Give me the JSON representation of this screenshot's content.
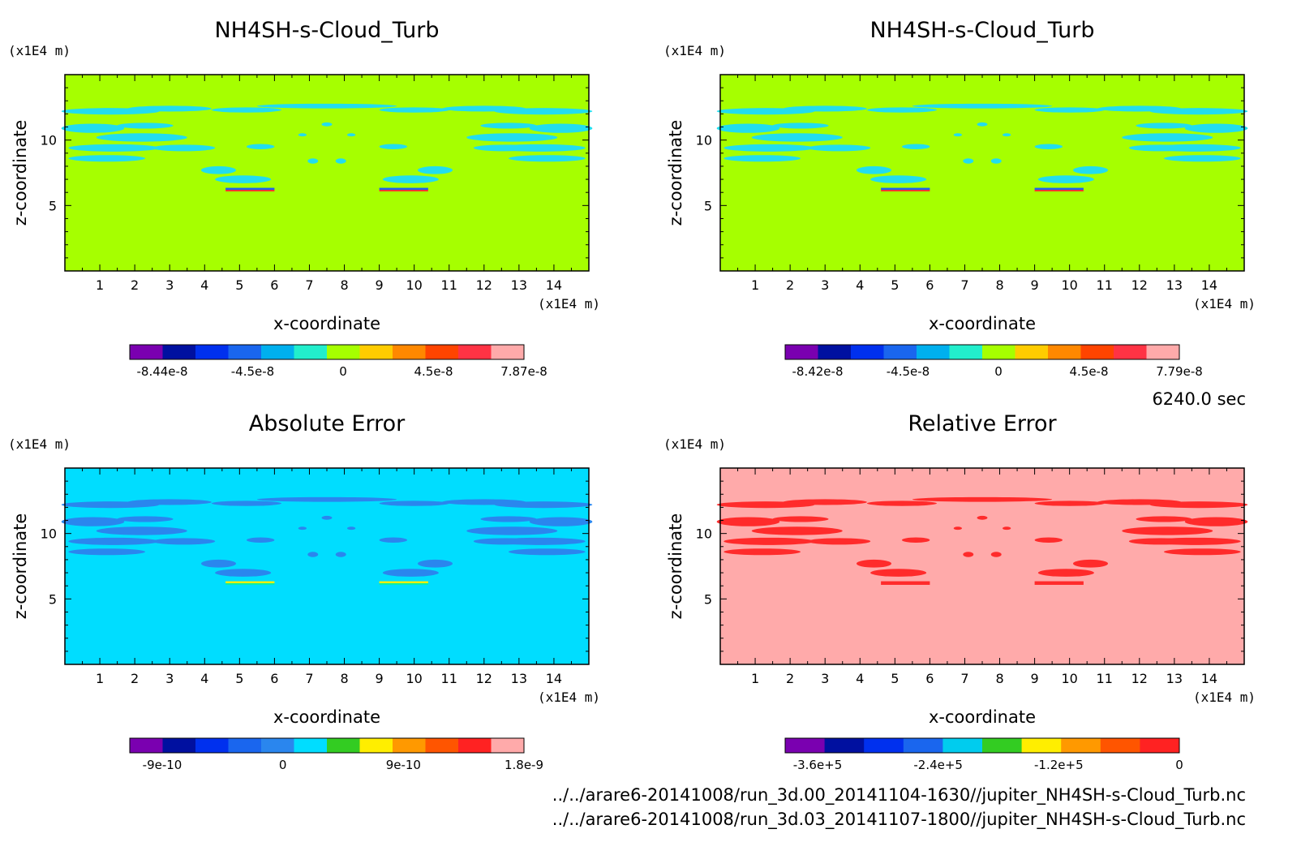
{
  "time_label": "6240.0 sec",
  "footer": {
    "file_1": "../../arare6-20141008/run_3d.00_20141104-1630//jupiter_NH4SH-s-Cloud_Turb.nc",
    "file_2": "../../arare6-20141008/run_3d.03_20141107-1800//jupiter_NH4SH-s-Cloud_Turb.nc"
  },
  "chart_data": [
    {
      "type": "heatmap",
      "title": "NH4SH-s-Cloud_Turb",
      "xlabel": "x-coordinate",
      "ylabel": "z-coordinate",
      "x_unit": "(x1E4 m)",
      "y_unit": "(x1E4 m)",
      "xlim": [
        0,
        15
      ],
      "ylim": [
        0,
        15
      ],
      "xticks": [
        1,
        2,
        3,
        4,
        5,
        6,
        7,
        8,
        9,
        10,
        11,
        12,
        13,
        14
      ],
      "yticks": [
        5,
        10
      ],
      "background_color": "#a6ff00",
      "feature_color": "#22ddee",
      "layer_colors": [
        "#ff3333",
        "#1a66ee"
      ],
      "colorbar": {
        "colors": [
          "#7a00b0",
          "#0010a0",
          "#0030ee",
          "#1a66ee",
          "#00b0ee",
          "#22eecc",
          "#a6ff00",
          "#ffcc00",
          "#ff8800",
          "#ff4400",
          "#ff3344",
          "#ffaaaa"
        ],
        "labels": [
          "-8.44e-8",
          "-4.5e-8",
          "0",
          "4.5e-8",
          "7.87e-8"
        ],
        "min": -8.44e-08,
        "max": 7.87e-08
      }
    },
    {
      "type": "heatmap",
      "title": "NH4SH-s-Cloud_Turb",
      "xlabel": "x-coordinate",
      "ylabel": "z-coordinate",
      "x_unit": "(x1E4 m)",
      "y_unit": "(x1E4 m)",
      "xlim": [
        0,
        15
      ],
      "ylim": [
        0,
        15
      ],
      "xticks": [
        1,
        2,
        3,
        4,
        5,
        6,
        7,
        8,
        9,
        10,
        11,
        12,
        13,
        14
      ],
      "yticks": [
        5,
        10
      ],
      "background_color": "#a6ff00",
      "feature_color": "#22ddee",
      "layer_colors": [
        "#ff3333",
        "#1a66ee"
      ],
      "colorbar": {
        "colors": [
          "#7a00b0",
          "#0010a0",
          "#0030ee",
          "#1a66ee",
          "#00b0ee",
          "#22eecc",
          "#a6ff00",
          "#ffcc00",
          "#ff8800",
          "#ff4400",
          "#ff3344",
          "#ffaaaa"
        ],
        "labels": [
          "-8.42e-8",
          "-4.5e-8",
          "0",
          "4.5e-8",
          "7.79e-8"
        ],
        "min": -8.42e-08,
        "max": 7.79e-08
      }
    },
    {
      "type": "heatmap",
      "title": "Absolute Error",
      "xlabel": "x-coordinate",
      "ylabel": "z-coordinate",
      "x_unit": "(x1E4 m)",
      "y_unit": "(x1E4 m)",
      "xlim": [
        0,
        15
      ],
      "ylim": [
        0,
        15
      ],
      "xticks": [
        1,
        2,
        3,
        4,
        5,
        6,
        7,
        8,
        9,
        10,
        11,
        12,
        13,
        14
      ],
      "yticks": [
        5,
        10
      ],
      "background_color": "#00ddff",
      "feature_color": "#2a86ee",
      "layer_colors": [
        "#00eeaa",
        "#ffee00"
      ],
      "colorbar": {
        "colors": [
          "#7a00b0",
          "#0010a0",
          "#0030ee",
          "#1a66ee",
          "#2a86ee",
          "#00ddff",
          "#33cc22",
          "#ffee00",
          "#ff9900",
          "#ff5500",
          "#ff2222",
          "#ffaaaa"
        ],
        "labels": [
          "-9e-10",
          "0",
          "9e-10",
          "1.8e-9"
        ]
      }
    },
    {
      "type": "heatmap",
      "title": "Relative Error",
      "xlabel": "x-coordinate",
      "ylabel": "z-coordinate",
      "x_unit": "(x1E4 m)",
      "y_unit": "(x1E4 m)",
      "xlim": [
        0,
        15
      ],
      "ylim": [
        0,
        15
      ],
      "xticks": [
        1,
        2,
        3,
        4,
        5,
        6,
        7,
        8,
        9,
        10,
        11,
        12,
        13,
        14
      ],
      "yticks": [
        5,
        10
      ],
      "background_color": "#ffaaaa",
      "feature_color": "#ff2b2b",
      "layer_colors": [
        "#ff2b2b",
        "#ff2b2b"
      ],
      "colorbar": {
        "colors": [
          "#7a00b0",
          "#0010a0",
          "#0030ee",
          "#1a66ee",
          "#00ccee",
          "#33cc22",
          "#ffee00",
          "#ff9900",
          "#ff5500",
          "#ff2222"
        ],
        "labels": [
          "-3.6e+5",
          "-2.4e+5",
          "-1.2e+5",
          "0"
        ],
        "min": -360000.0,
        "max": 0
      }
    }
  ]
}
